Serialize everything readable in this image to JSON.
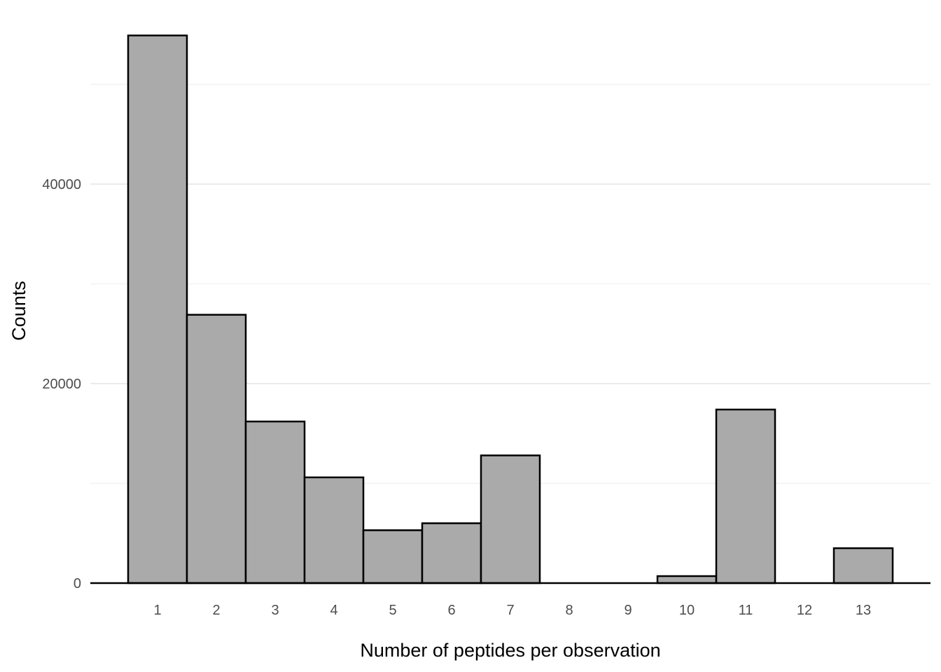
{
  "chart_data": {
    "type": "bar",
    "title": "",
    "xlabel": "Number of peptides per observation",
    "ylabel": "Counts",
    "categories": [
      "1",
      "2",
      "3",
      "4",
      "5",
      "6",
      "7",
      "8",
      "9",
      "10",
      "11",
      "12",
      "13"
    ],
    "values": [
      54900,
      26900,
      16200,
      10600,
      5300,
      6000,
      12800,
      0,
      0,
      700,
      17400,
      0,
      3500
    ],
    "ylim": [
      0,
      57000
    ],
    "yticks": [
      0,
      20000,
      40000
    ],
    "ytick_labels": [
      "0",
      "20000",
      "40000"
    ],
    "y_minor_gridlines": [
      10000,
      30000,
      50000
    ],
    "grid": true,
    "legend": "none",
    "colors": {
      "bar_fill": "#aaaaaa",
      "bar_outline": "#000000",
      "grid": "#ebebeb"
    }
  }
}
